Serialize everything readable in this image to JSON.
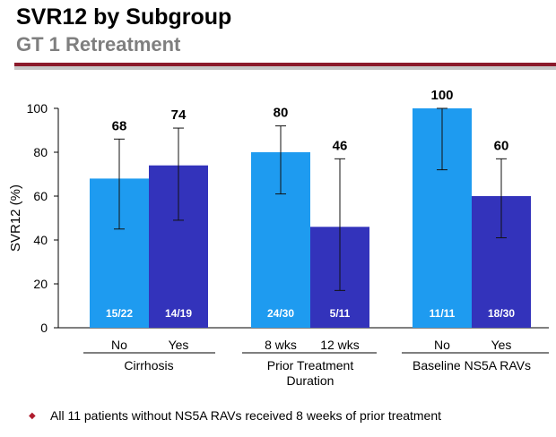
{
  "header": {
    "title": "SVR12 by Subgroup",
    "subtitle": "GT 1 Retreatment"
  },
  "footnote": {
    "bullet": "◆",
    "text": "All 11 patients without NS5A RAVs received 8 weeks of prior treatment"
  },
  "chart_data": {
    "type": "bar",
    "ylabel": "SVR12 (%)",
    "ylim": [
      0,
      100
    ],
    "yticks": [
      0,
      20,
      40,
      60,
      80,
      100
    ],
    "grid": false,
    "groups": [
      {
        "label": "Cirrhosis",
        "bars": [
          {
            "category": "No",
            "value": 68,
            "ci": [
              45,
              86
            ],
            "fraction": "15/22",
            "color": "#1e9bf0"
          },
          {
            "category": "Yes",
            "value": 74,
            "ci": [
              49,
              91
            ],
            "fraction": "14/19",
            "color": "#3333bb"
          }
        ]
      },
      {
        "label": "Prior Treatment Duration",
        "bars": [
          {
            "category": "8 wks",
            "value": 80,
            "ci": [
              61,
              92
            ],
            "fraction": "24/30",
            "color": "#1e9bf0"
          },
          {
            "category": "12 wks",
            "value": 46,
            "ci": [
              17,
              77
            ],
            "fraction": "5/11",
            "color": "#3333bb"
          }
        ]
      },
      {
        "label": "Baseline NS5A RAVs",
        "bars": [
          {
            "category": "No",
            "value": 100,
            "ci": [
              72,
              100
            ],
            "fraction": "11/11",
            "color": "#1e9bf0"
          },
          {
            "category": "Yes",
            "value": 60,
            "ci": [
              41,
              77
            ],
            "fraction": "18/30",
            "color": "#3333bb"
          }
        ]
      }
    ]
  }
}
